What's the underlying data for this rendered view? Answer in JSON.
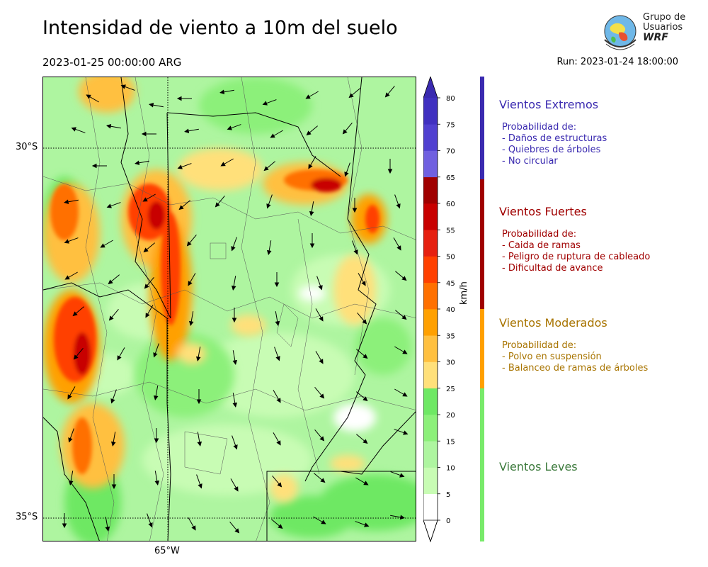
{
  "header": {
    "title": "Intensidad de viento a 10m del suelo",
    "valid_time": "2023-01-25 00:00:00 ARG",
    "run": "Run: 2023-01-24 18:00:00"
  },
  "logo": {
    "line1": "Grupo de",
    "line2": "Usuarios",
    "line3": "WRF"
  },
  "map": {
    "lat_labels": [
      "30°S",
      "35°S"
    ],
    "lon_labels": [
      "65°W"
    ],
    "grid_lines": "dotted"
  },
  "colorbar": {
    "unit": "km/h",
    "ticks": [
      "0",
      "5",
      "10",
      "15",
      "20",
      "25",
      "30",
      "35",
      "40",
      "45",
      "50",
      "55",
      "60",
      "65",
      "70",
      "75",
      "80"
    ],
    "colors": [
      "#ffffff",
      "#c8fcb4",
      "#aef5a0",
      "#8cf07a",
      "#6ee864",
      "#ffe07a",
      "#ffc040",
      "#ffa000",
      "#ff7000",
      "#ff4000",
      "#e62010",
      "#c80000",
      "#a00000",
      "#7060e0",
      "#5040d0",
      "#4030c0"
    ],
    "extend_under_color": "#ffffff",
    "extend_over_color": "#3a2ab0"
  },
  "legend": {
    "extremos": {
      "title": "Vientos Extremos",
      "color": "#3a2ab0",
      "lines": [
        "Probabilidad de:",
        "- Daños de estructuras",
        "- Quiebres de árboles",
        "- No circular"
      ]
    },
    "fuertes": {
      "title": "Vientos Fuertes",
      "color": "#a00000",
      "lines": [
        "Probabilidad de:",
        "- Caida de ramas",
        "- Peligro de ruptura de cableado",
        "- Dificultad de avance"
      ]
    },
    "moderados": {
      "title": "Vientos Moderados",
      "color": "#a87400",
      "band_color": "#ffa000",
      "lines": [
        "Probabilidad de:",
        "- Polvo en suspensión",
        "- Balanceo de ramas de árboles"
      ]
    },
    "leves": {
      "title": "Vientos Leves",
      "color": "#3c7a3c",
      "band_color": "#78ea6a"
    }
  }
}
